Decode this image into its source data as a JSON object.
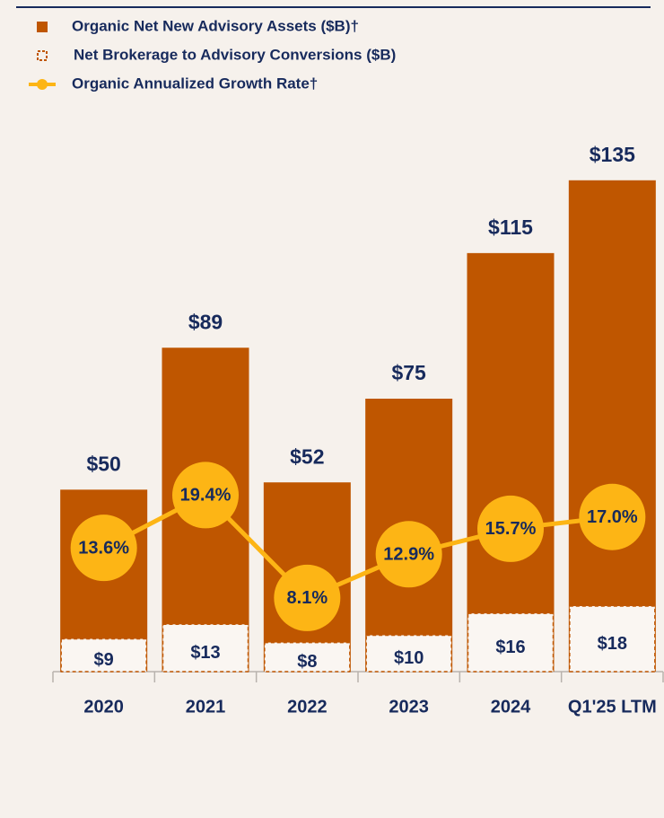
{
  "chart_data": {
    "type": "bar",
    "categories": [
      "2020",
      "2021",
      "2022",
      "2023",
      "2024",
      "Q1'25 LTM"
    ],
    "series": [
      {
        "name": "Organic Net New Advisory Assets ($B)†",
        "color": "#bf5600",
        "values": [
          50,
          89,
          52,
          75,
          115,
          135
        ],
        "value_labels": [
          "$50",
          "$89",
          "$52",
          "$75",
          "$115",
          "$135"
        ]
      },
      {
        "name": "Net Brokerage to Advisory Conversions ($B)",
        "color": "#bf5600",
        "values": [
          9,
          13,
          8,
          10,
          16,
          18
        ],
        "value_labels": [
          "$9",
          "$13",
          "$8",
          "$10",
          "$16",
          "$18"
        ]
      },
      {
        "name": "Organic Annualized Growth Rate†",
        "type": "line",
        "axis": "y2",
        "color": "#fdb515",
        "values": [
          13.6,
          19.4,
          8.1,
          12.9,
          15.7,
          17.0
        ],
        "value_labels": [
          "13.6%",
          "19.4%",
          "8.1%",
          "12.9%",
          "15.7%",
          "17.0%"
        ]
      }
    ],
    "ylim": [
      0,
      150
    ],
    "y2lim": [
      0,
      60
    ]
  }
}
